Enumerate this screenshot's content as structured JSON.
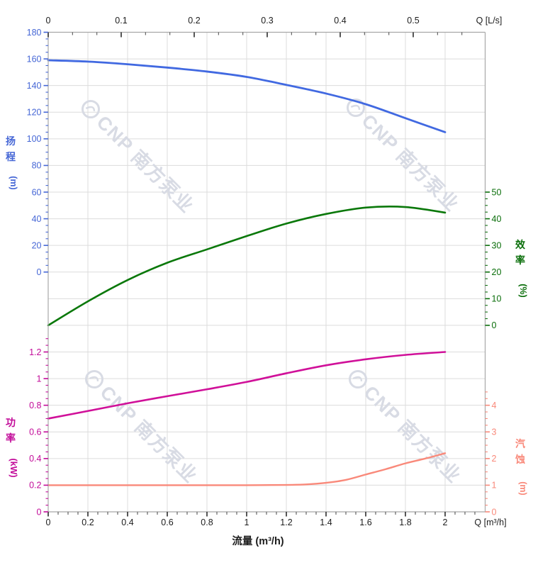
{
  "watermark": {
    "logo_icon": "cnp-ring-logo",
    "text": "CNP 南方泵业",
    "color": "#d8dbe4"
  },
  "chart_data": {
    "type": "line",
    "grid": true,
    "background": "#ffffff",
    "axes": {
      "flow_bottom": {
        "title": "流量 (m³/h)",
        "unit_label": "Q [m³/h]",
        "ticks": [
          0,
          0.2,
          0.4,
          0.6,
          0.8,
          1,
          1.2,
          1.4,
          1.6,
          1.8,
          2
        ],
        "range": [
          0,
          2.2
        ],
        "minor_step": 0.05,
        "color": "#1c1c1c"
      },
      "flow_top": {
        "unit_label": "Q [L/s]",
        "ticks": [
          0,
          0.1,
          0.2,
          0.3,
          0.4,
          0.5
        ],
        "range": [
          0,
          0.6
        ],
        "color": "#1c1c1c"
      },
      "head": {
        "title": "扬程 (m)",
        "title_chars": [
          "扬",
          "程"
        ],
        "unit": "(m)",
        "side": "left",
        "color": "#4667d6",
        "curve_color": "#4169e1",
        "ticks": [
          180,
          160,
          140,
          120,
          100,
          80,
          60,
          40,
          20,
          0
        ],
        "range": [
          0,
          180
        ],
        "minor_per_major": 3
      },
      "efficiency": {
        "title": "效率 (%)",
        "title_chars": [
          "效",
          "率"
        ],
        "unit": "(%)",
        "side": "right",
        "color": "#0a6e0a",
        "curve_color": "#0a780a",
        "ticks": [
          50,
          40,
          30,
          20,
          10,
          0
        ],
        "range": [
          0,
          50
        ],
        "minor_per_major": 3
      },
      "power": {
        "title": "功率 (kW)",
        "title_chars": [
          "功",
          "率"
        ],
        "unit": "(kW)",
        "side": "left",
        "color": "#c20b99",
        "curve_color": "#d01099",
        "ticks": [
          1.2,
          1,
          0.8,
          0.6,
          0.4,
          0.2,
          0
        ],
        "range": [
          0,
          1.2
        ],
        "minor_per_major": 3
      },
      "npsh": {
        "title": "汽蚀 (m)",
        "title_chars": [
          "汽",
          "蚀"
        ],
        "unit": "(m)",
        "side": "right",
        "color": "#f9897a",
        "curve_color": "#f9897a",
        "ticks": [
          4,
          3,
          2,
          1,
          0
        ],
        "range": [
          0,
          4
        ],
        "minor_per_major": 3
      }
    },
    "series": [
      {
        "name": "head",
        "axis": "head",
        "color": "#4169e1",
        "width": 2.8,
        "x": [
          0,
          0.2,
          0.4,
          0.6,
          0.8,
          1,
          1.2,
          1.4,
          1.6,
          1.8,
          2
        ],
        "y": [
          159,
          158,
          156,
          153.5,
          150.5,
          146.5,
          140.5,
          134,
          126,
          115.5,
          105
        ]
      },
      {
        "name": "efficiency",
        "axis": "efficiency",
        "color": "#0a780a",
        "width": 2.6,
        "x": [
          0,
          0.2,
          0.4,
          0.6,
          0.8,
          1,
          1.2,
          1.4,
          1.6,
          1.8,
          2
        ],
        "y": [
          0,
          9,
          17,
          23.5,
          28.5,
          33.5,
          38.2,
          41.8,
          44.2,
          44.4,
          42.3
        ]
      },
      {
        "name": "power",
        "axis": "power",
        "color": "#d01099",
        "width": 2.6,
        "x": [
          0,
          0.2,
          0.4,
          0.6,
          0.8,
          1,
          1.2,
          1.4,
          1.6,
          1.8,
          2
        ],
        "y": [
          0.7,
          0.757,
          0.815,
          0.868,
          0.92,
          0.975,
          1.04,
          1.1,
          1.145,
          1.178,
          1.2
        ]
      },
      {
        "name": "npsh",
        "axis": "npsh",
        "color": "#f9897a",
        "width": 2.4,
        "x": [
          0,
          0.2,
          0.4,
          0.6,
          0.8,
          1,
          1.2,
          1.3,
          1.4,
          1.5,
          1.6,
          1.7,
          1.8,
          1.9,
          2
        ],
        "y": [
          1,
          1,
          1,
          1,
          1,
          1,
          1.01,
          1.03,
          1.09,
          1.2,
          1.4,
          1.6,
          1.82,
          2.0,
          2.2
        ]
      }
    ]
  }
}
